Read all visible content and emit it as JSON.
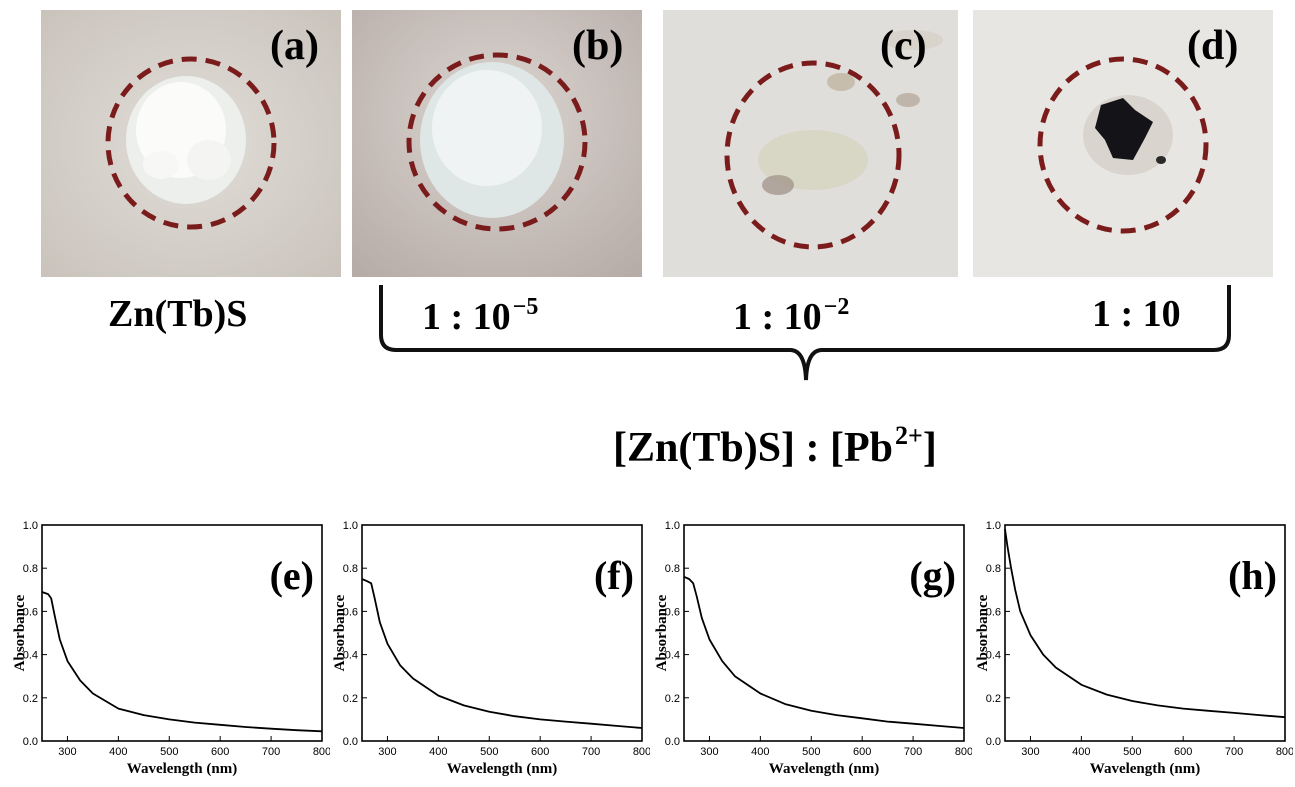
{
  "panels": {
    "a": {
      "label": "(a)",
      "caption": "Zn(Tb)S"
    },
    "b": {
      "label": "(b)",
      "ratio_base": "1 : 10",
      "ratio_exp": "−5"
    },
    "c": {
      "label": "(c)",
      "ratio_base": "1 : 10",
      "ratio_exp": "−2"
    },
    "d": {
      "label": "(d)",
      "ratio": "1 : 10"
    }
  },
  "group_label": {
    "prefix": "[Zn(Tb)S] : [Pb",
    "sup": "2+",
    "suffix": "]"
  },
  "colors": {
    "circle": "#7b1c1c",
    "curve": "#000000"
  },
  "chart_data": [
    {
      "type": "line",
      "panel_label": "(e)",
      "xlabel": "Wavelength (nm)",
      "ylabel": "Absorbance",
      "xlim": [
        250,
        800
      ],
      "ylim": [
        0.0,
        1.0
      ],
      "xticks": [
        300,
        400,
        500,
        600,
        700,
        800
      ],
      "yticks": [
        "0.0",
        "0.2",
        "0.4",
        "0.6",
        "0.8",
        "1.0"
      ],
      "series": [
        {
          "x": [
            250,
            262,
            268,
            275,
            285,
            300,
            325,
            350,
            400,
            450,
            500,
            550,
            600,
            650,
            700,
            750,
            800
          ],
          "y": [
            0.69,
            0.68,
            0.66,
            0.58,
            0.47,
            0.37,
            0.28,
            0.22,
            0.15,
            0.12,
            0.1,
            0.085,
            0.075,
            0.065,
            0.057,
            0.05,
            0.045
          ]
        }
      ]
    },
    {
      "type": "line",
      "panel_label": "(f)",
      "xlabel": "Wavelength (nm)",
      "ylabel": "Absorbance",
      "xlim": [
        250,
        800
      ],
      "ylim": [
        0.0,
        1.0
      ],
      "xticks": [
        300,
        400,
        500,
        600,
        700,
        800
      ],
      "yticks": [
        "0.0",
        "0.2",
        "0.4",
        "0.6",
        "0.8",
        "1.0"
      ],
      "series": [
        {
          "x": [
            250,
            260,
            268,
            275,
            285,
            300,
            325,
            350,
            400,
            450,
            500,
            550,
            600,
            650,
            700,
            750,
            800
          ],
          "y": [
            0.75,
            0.74,
            0.73,
            0.66,
            0.55,
            0.45,
            0.35,
            0.29,
            0.21,
            0.165,
            0.135,
            0.115,
            0.1,
            0.09,
            0.08,
            0.07,
            0.06
          ]
        }
      ]
    },
    {
      "type": "line",
      "panel_label": "(g)",
      "xlabel": "Wavelength (nm)",
      "ylabel": "Absorbance",
      "xlim": [
        250,
        800
      ],
      "ylim": [
        0.0,
        1.0
      ],
      "xticks": [
        300,
        400,
        500,
        600,
        700,
        800
      ],
      "yticks": [
        "0.0",
        "0.2",
        "0.4",
        "0.6",
        "0.8",
        "1.0"
      ],
      "series": [
        {
          "x": [
            250,
            260,
            268,
            275,
            285,
            300,
            325,
            350,
            400,
            450,
            500,
            550,
            600,
            650,
            700,
            750,
            800
          ],
          "y": [
            0.76,
            0.75,
            0.73,
            0.67,
            0.57,
            0.47,
            0.37,
            0.3,
            0.22,
            0.17,
            0.14,
            0.12,
            0.105,
            0.09,
            0.08,
            0.07,
            0.06
          ]
        }
      ]
    },
    {
      "type": "line",
      "panel_label": "(h)",
      "xlabel": "Wavelength (nm)",
      "ylabel": "Absorbance",
      "xlim": [
        250,
        800
      ],
      "ylim": [
        0.0,
        1.0
      ],
      "xticks": [
        300,
        400,
        500,
        600,
        700,
        800
      ],
      "yticks": [
        "0.0",
        "0.2",
        "0.4",
        "0.6",
        "0.8",
        "1.0"
      ],
      "series": [
        {
          "x": [
            250,
            255,
            262,
            270,
            280,
            300,
            325,
            350,
            400,
            450,
            500,
            550,
            600,
            650,
            700,
            750,
            800
          ],
          "y": [
            0.98,
            0.9,
            0.8,
            0.7,
            0.6,
            0.49,
            0.4,
            0.34,
            0.26,
            0.215,
            0.185,
            0.165,
            0.15,
            0.14,
            0.13,
            0.12,
            0.11
          ]
        }
      ]
    }
  ]
}
